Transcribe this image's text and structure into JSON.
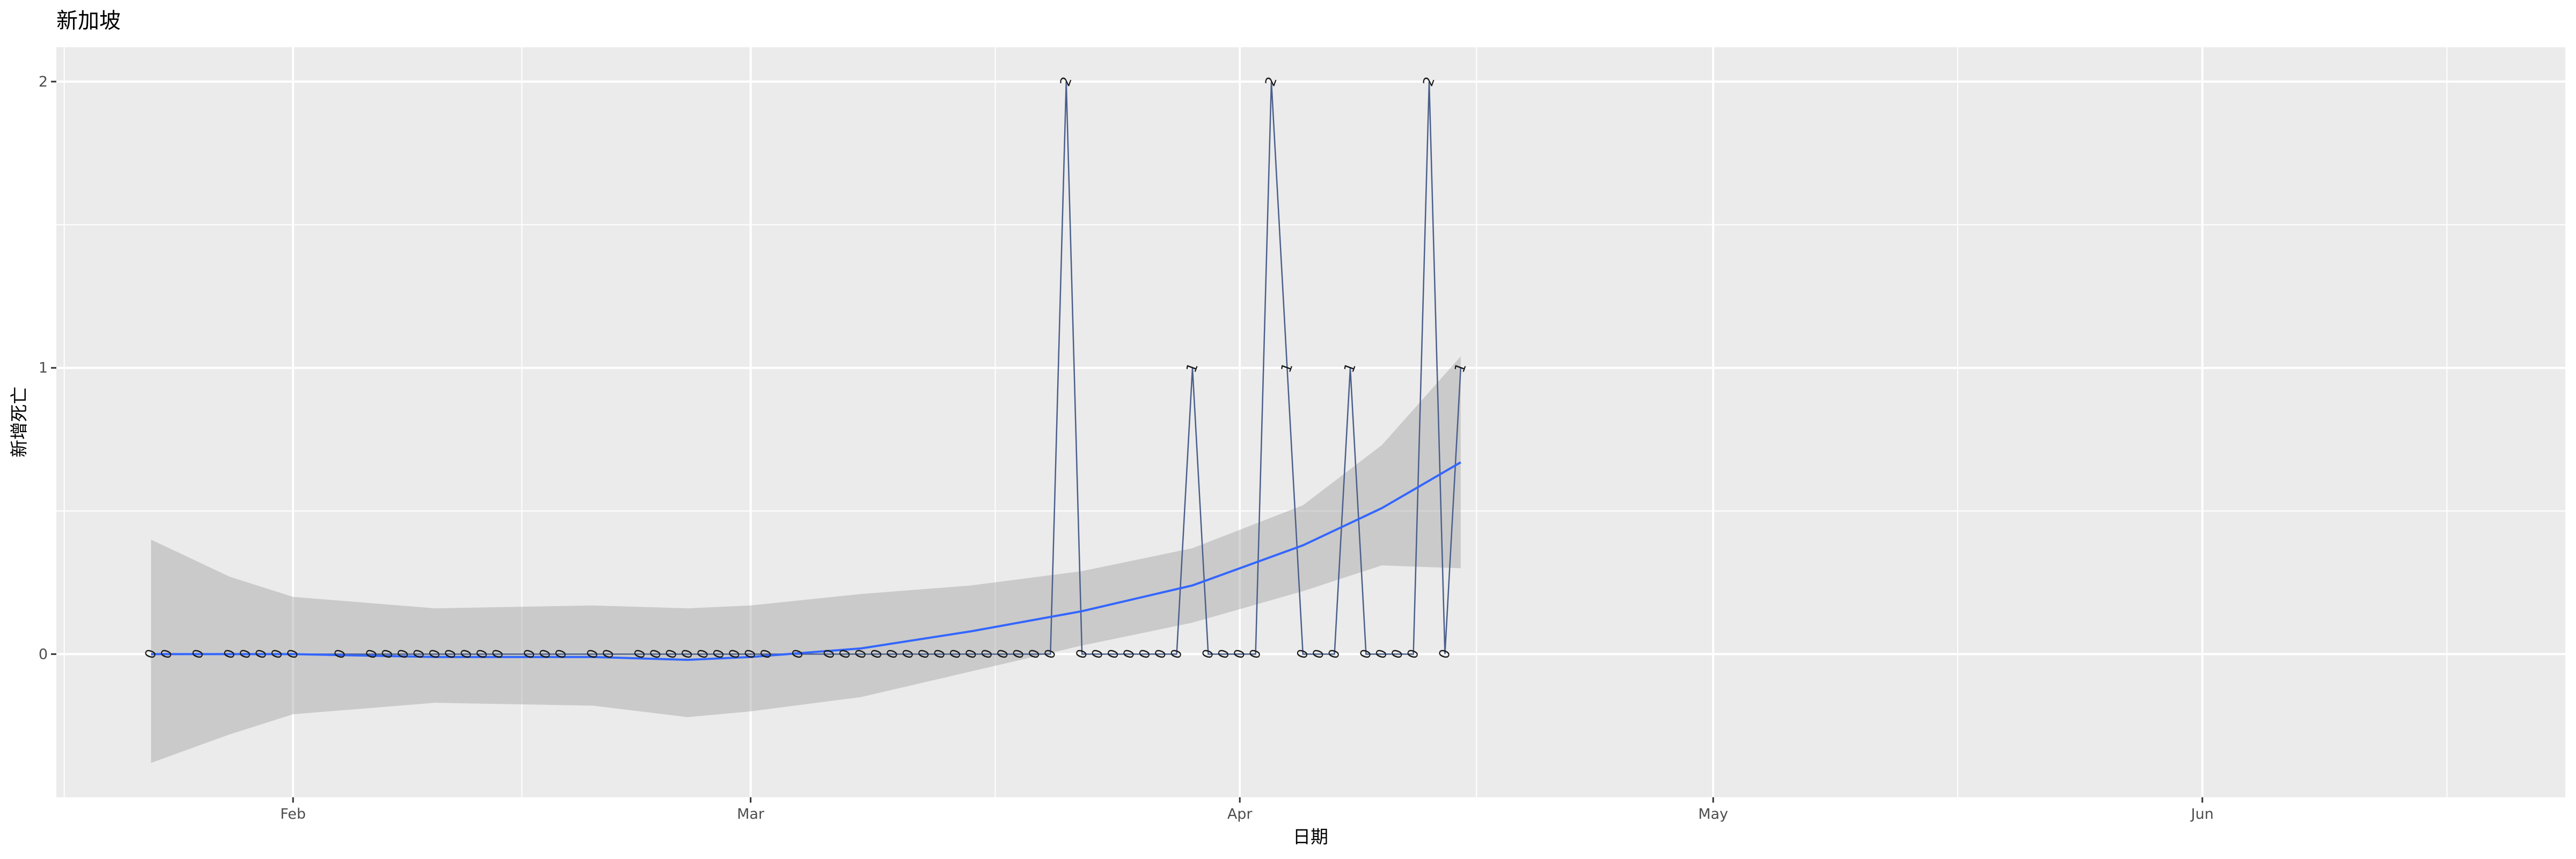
{
  "chart_data": {
    "type": "line",
    "title": "新加坡",
    "xlabel": "日期",
    "ylabel": "新增死亡",
    "x_ticks": [
      {
        "date": "2020-02-01",
        "label": "Feb"
      },
      {
        "date": "2020-03-01",
        "label": "Mar"
      },
      {
        "date": "2020-04-01",
        "label": "Apr"
      },
      {
        "date": "2020-05-01",
        "label": "May"
      },
      {
        "date": "2020-06-01",
        "label": "Jun"
      }
    ],
    "y_ticks": [
      0,
      1,
      2
    ],
    "xlim": [
      "2020-01-17",
      "2020-06-24"
    ],
    "ylim": [
      -0.5,
      2.12
    ],
    "grid": true,
    "series": [
      {
        "color": "#4a5f8c",
        "labeled_points": true,
        "points": [
          [
            "2020-01-23",
            0
          ],
          [
            "2020-01-24",
            0
          ],
          [
            "2020-01-26",
            0
          ],
          [
            "2020-01-28",
            0
          ],
          [
            "2020-01-29",
            0
          ],
          [
            "2020-01-30",
            0
          ],
          [
            "2020-01-31",
            0
          ],
          [
            "2020-02-01",
            0
          ],
          [
            "2020-02-04",
            0
          ],
          [
            "2020-02-06",
            0
          ],
          [
            "2020-02-07",
            0
          ],
          [
            "2020-02-08",
            0
          ],
          [
            "2020-02-09",
            0
          ],
          [
            "2020-02-10",
            0
          ],
          [
            "2020-02-11",
            0
          ],
          [
            "2020-02-12",
            0
          ],
          [
            "2020-02-13",
            0
          ],
          [
            "2020-02-14",
            0
          ],
          [
            "2020-02-16",
            0
          ],
          [
            "2020-02-17",
            0
          ],
          [
            "2020-02-18",
            0
          ],
          [
            "2020-02-20",
            0
          ],
          [
            "2020-02-21",
            0
          ],
          [
            "2020-02-23",
            0
          ],
          [
            "2020-02-24",
            0
          ],
          [
            "2020-02-25",
            0
          ],
          [
            "2020-02-26",
            0
          ],
          [
            "2020-02-27",
            0
          ],
          [
            "2020-02-28",
            0
          ],
          [
            "2020-02-29",
            0
          ],
          [
            "2020-03-01",
            0
          ],
          [
            "2020-03-02",
            0
          ],
          [
            "2020-03-04",
            0
          ],
          [
            "2020-03-06",
            0
          ],
          [
            "2020-03-07",
            0
          ],
          [
            "2020-03-08",
            0
          ],
          [
            "2020-03-09",
            0
          ],
          [
            "2020-03-10",
            0
          ],
          [
            "2020-03-11",
            0
          ],
          [
            "2020-03-12",
            0
          ],
          [
            "2020-03-13",
            0
          ],
          [
            "2020-03-14",
            0
          ],
          [
            "2020-03-15",
            0
          ],
          [
            "2020-03-16",
            0
          ],
          [
            "2020-03-17",
            0
          ],
          [
            "2020-03-18",
            0
          ],
          [
            "2020-03-19",
            0
          ],
          [
            "2020-03-20",
            0
          ],
          [
            "2020-03-21",
            2
          ],
          [
            "2020-03-22",
            0
          ],
          [
            "2020-03-23",
            0
          ],
          [
            "2020-03-24",
            0
          ],
          [
            "2020-03-25",
            0
          ],
          [
            "2020-03-26",
            0
          ],
          [
            "2020-03-27",
            0
          ],
          [
            "2020-03-28",
            0
          ],
          [
            "2020-03-29",
            1
          ],
          [
            "2020-03-30",
            0
          ],
          [
            "2020-03-31",
            0
          ],
          [
            "2020-04-01",
            0
          ],
          [
            "2020-04-02",
            0
          ],
          [
            "2020-04-03",
            2
          ],
          [
            "2020-04-04",
            1
          ],
          [
            "2020-04-05",
            0
          ],
          [
            "2020-04-06",
            0
          ],
          [
            "2020-04-07",
            0
          ],
          [
            "2020-04-08",
            1
          ],
          [
            "2020-04-09",
            0
          ],
          [
            "2020-04-10",
            0
          ],
          [
            "2020-04-11",
            0
          ],
          [
            "2020-04-12",
            0
          ],
          [
            "2020-04-13",
            2
          ],
          [
            "2020-04-14",
            0
          ],
          [
            "2020-04-15",
            1
          ]
        ]
      },
      {
        "type": "smooth",
        "color": "#3366ff",
        "band_color": "#999999",
        "points": [
          [
            "2020-01-23",
            0.0
          ],
          [
            "2020-02-01",
            0.0
          ],
          [
            "2020-02-10",
            -0.01
          ],
          [
            "2020-02-20",
            -0.01
          ],
          [
            "2020-02-26",
            -0.02
          ],
          [
            "2020-03-01",
            -0.01
          ],
          [
            "2020-03-08",
            0.02
          ],
          [
            "2020-03-15",
            0.08
          ],
          [
            "2020-03-22",
            0.15
          ],
          [
            "2020-03-29",
            0.24
          ],
          [
            "2020-04-05",
            0.38
          ],
          [
            "2020-04-10",
            0.51
          ],
          [
            "2020-04-15",
            0.67
          ]
        ],
        "lower": [
          [
            "2020-01-23",
            -0.38
          ],
          [
            "2020-01-28",
            -0.28
          ],
          [
            "2020-02-01",
            -0.21
          ],
          [
            "2020-02-10",
            -0.17
          ],
          [
            "2020-02-20",
            -0.18
          ],
          [
            "2020-02-26",
            -0.22
          ],
          [
            "2020-03-01",
            -0.2
          ],
          [
            "2020-03-08",
            -0.15
          ],
          [
            "2020-03-15",
            -0.06
          ],
          [
            "2020-03-22",
            0.03
          ],
          [
            "2020-03-29",
            0.11
          ],
          [
            "2020-04-05",
            0.22
          ],
          [
            "2020-04-10",
            0.31
          ],
          [
            "2020-04-15",
            0.3
          ]
        ],
        "upper": [
          [
            "2020-01-23",
            0.4
          ],
          [
            "2020-01-28",
            0.27
          ],
          [
            "2020-02-01",
            0.2
          ],
          [
            "2020-02-10",
            0.16
          ],
          [
            "2020-02-20",
            0.17
          ],
          [
            "2020-02-26",
            0.16
          ],
          [
            "2020-03-01",
            0.17
          ],
          [
            "2020-03-08",
            0.21
          ],
          [
            "2020-03-15",
            0.24
          ],
          [
            "2020-03-22",
            0.29
          ],
          [
            "2020-03-29",
            0.37
          ],
          [
            "2020-04-05",
            0.52
          ],
          [
            "2020-04-10",
            0.73
          ],
          [
            "2020-04-15",
            1.04
          ]
        ]
      }
    ]
  }
}
